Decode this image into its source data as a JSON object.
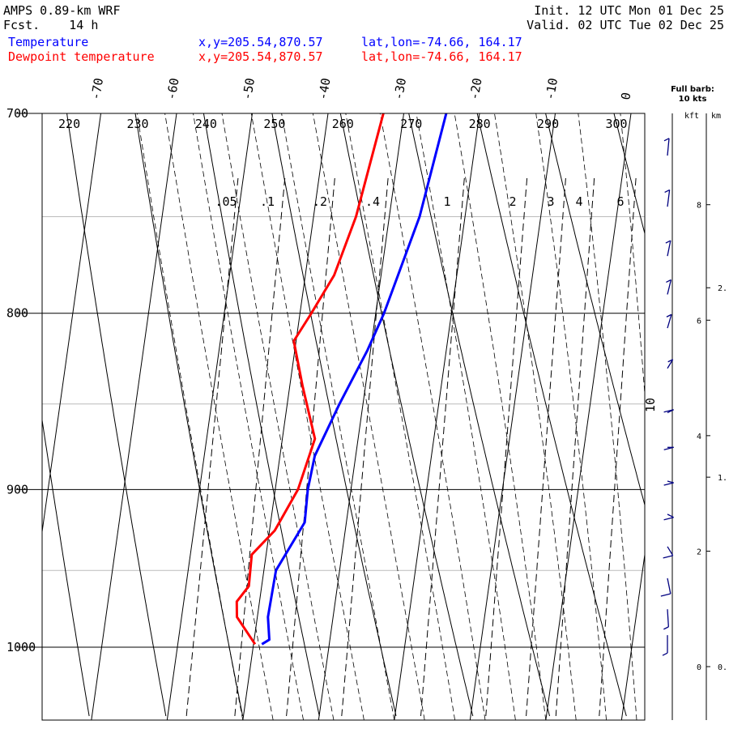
{
  "header": {
    "model": "AMPS 0.89-km WRF",
    "fcst": "Fcst.    14 h",
    "init": "Init. 12 UTC Mon 01 Dec 25",
    "valid": "Valid. 02 UTC Tue 02 Dec 25",
    "legend": [
      {
        "name": "Temperature",
        "xy": "x,y=205.54,870.57",
        "latlon": "lat,lon=-74.66, 164.17",
        "color": "#0000ff"
      },
      {
        "name": "Dewpoint temperature",
        "xy": "x,y=205.54,870.57",
        "latlon": "lat,lon=-74.66, 164.17",
        "color": "#ff0000"
      }
    ]
  },
  "barb_legend": {
    "line1": "Full barb:",
    "line2": "10 kts",
    "color": "#000080"
  },
  "chart_data": {
    "type": "skew-t",
    "pressure_levels": [
      700,
      800,
      900,
      1000
    ],
    "pressure_range": [
      700,
      1040
    ],
    "temperature_ticks": [
      -70,
      -60,
      -50,
      -40,
      -30,
      -20,
      -10,
      0
    ],
    "theta_labels": [
      "220",
      "230",
      "240",
      "250",
      "260",
      "270",
      "280",
      "290",
      "300"
    ],
    "mixing_ratio_labels": [
      ".05",
      ".1",
      ".2",
      ".4",
      "1",
      "2",
      "3",
      "4",
      "6"
    ],
    "height_axis": {
      "kft_label": "kft",
      "km_label": "km",
      "kft_ticks": [
        "8",
        "6",
        "4",
        "2",
        "0"
      ],
      "km_ticks": [
        "2.",
        "1.",
        "0."
      ],
      "wind_speed_label": "10"
    },
    "series": [
      {
        "name": "Temperature",
        "color": "#0000ff",
        "pressure": [
          700,
          750,
          800,
          820,
          850,
          880,
          900,
          920,
          950,
          980,
          995,
          998
        ],
        "temp_c": [
          -24.4,
          -26.0,
          -28.9,
          -30.4,
          -33.1,
          -35.4,
          -35.7,
          -35.5,
          -38.4,
          -38.6,
          -38.0,
          -38.9
        ]
      },
      {
        "name": "Dewpoint temperature",
        "color": "#ff0000",
        "pressure": [
          700,
          750,
          780,
          800,
          815,
          840,
          870,
          900,
          925,
          940,
          960,
          970,
          980,
          998
        ],
        "temp_c": [
          -32.7,
          -34.4,
          -36.2,
          -38.5,
          -40.3,
          -38.3,
          -35.7,
          -37.0,
          -39.3,
          -41.9,
          -41.7,
          -43.0,
          -42.7,
          -39.8
        ]
      }
    ],
    "wind_barbs": [
      {
        "pressure": 720,
        "speed_kt": 5,
        "dir_deg": 15
      },
      {
        "pressure": 745,
        "speed_kt": 5,
        "dir_deg": 20
      },
      {
        "pressure": 770,
        "speed_kt": 5,
        "dir_deg": 30
      },
      {
        "pressure": 790,
        "speed_kt": 5,
        "dir_deg": 35
      },
      {
        "pressure": 808,
        "speed_kt": 5,
        "dir_deg": 40
      },
      {
        "pressure": 830,
        "speed_kt": 5,
        "dir_deg": 60
      },
      {
        "pressure": 855,
        "speed_kt": 10,
        "dir_deg": 80
      },
      {
        "pressure": 875,
        "speed_kt": 10,
        "dir_deg": 90
      },
      {
        "pressure": 895,
        "speed_kt": 10,
        "dir_deg": 95
      },
      {
        "pressure": 915,
        "speed_kt": 10,
        "dir_deg": 100
      },
      {
        "pressure": 935,
        "speed_kt": 10,
        "dir_deg": 120
      },
      {
        "pressure": 955,
        "speed_kt": 10,
        "dir_deg": 150
      },
      {
        "pressure": 975,
        "speed_kt": 5,
        "dir_deg": 170
      },
      {
        "pressure": 992,
        "speed_kt": 5,
        "dir_deg": 180
      }
    ]
  }
}
